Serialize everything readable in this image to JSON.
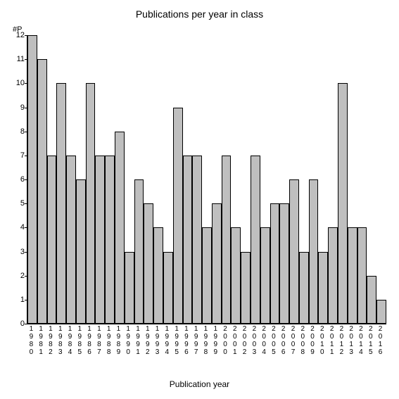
{
  "chart": {
    "type": "bar",
    "title": "Publications per year in class",
    "title_fontsize": 14,
    "y_axis_label": "#P",
    "x_axis_label": "Publication year",
    "x_axis_label_fontsize": 12,
    "ylim": [
      0,
      12
    ],
    "ytick_step": 1,
    "yticks": [
      0,
      1,
      2,
      3,
      4,
      5,
      6,
      7,
      8,
      9,
      10,
      11,
      12
    ],
    "background_color": "#ffffff",
    "bar_color": "#bfbfbf",
    "bar_border_color": "#000000",
    "axis_color": "#000000",
    "text_color": "#000000",
    "tick_fontsize": 11,
    "xlabel_fontsize": 10,
    "categories": [
      "1980",
      "1981",
      "1982",
      "1983",
      "1984",
      "1985",
      "1986",
      "1987",
      "1988",
      "1989",
      "1990",
      "1991",
      "1992",
      "1993",
      "1994",
      "1995",
      "1996",
      "1997",
      "1998",
      "1999",
      "2000",
      "2001",
      "2002",
      "2003",
      "2004",
      "2005",
      "2006",
      "2007",
      "2008",
      "2009",
      "2010",
      "2011",
      "2012",
      "2013",
      "2014",
      "2015",
      "2016"
    ],
    "values": [
      12,
      11,
      7,
      10,
      7,
      6,
      10,
      7,
      7,
      8,
      3,
      6,
      5,
      4,
      3,
      9,
      7,
      7,
      4,
      5,
      7,
      4,
      3,
      7,
      4,
      5,
      5,
      6,
      3,
      6,
      3,
      4,
      10,
      4,
      4,
      2,
      1
    ]
  }
}
